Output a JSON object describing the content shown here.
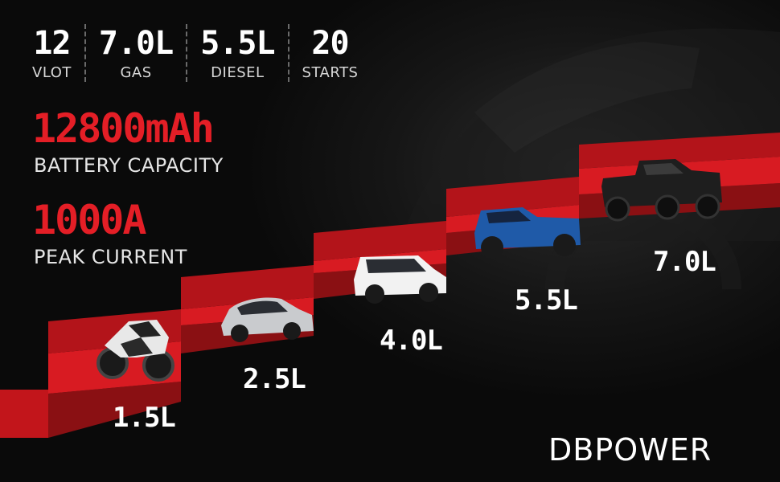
{
  "specs": [
    {
      "value": "12",
      "label": "VLOT"
    },
    {
      "value": "7.0L",
      "label": "GAS"
    },
    {
      "value": "5.5L",
      "label": "DIESEL"
    },
    {
      "value": "20",
      "label": "STARTS"
    }
  ],
  "capacity": {
    "value": "12800mAh",
    "label": "BATTERY CAPACITY"
  },
  "current": {
    "value": "1000A",
    "label": "PEAK CURRENT"
  },
  "steps": [
    {
      "label": "1.5L",
      "vehicle": "motorcycle"
    },
    {
      "label": "2.5L",
      "vehicle": "sedan"
    },
    {
      "label": "4.0L",
      "vehicle": "suv"
    },
    {
      "label": "5.5L",
      "vehicle": "pickup-truck"
    },
    {
      "label": "7.0L",
      "vehicle": "heavy-truck"
    }
  ],
  "brand": "DBPOWER",
  "colors": {
    "accent": "#e41e26",
    "background": "#0b0b0b",
    "text": "#ffffff"
  }
}
